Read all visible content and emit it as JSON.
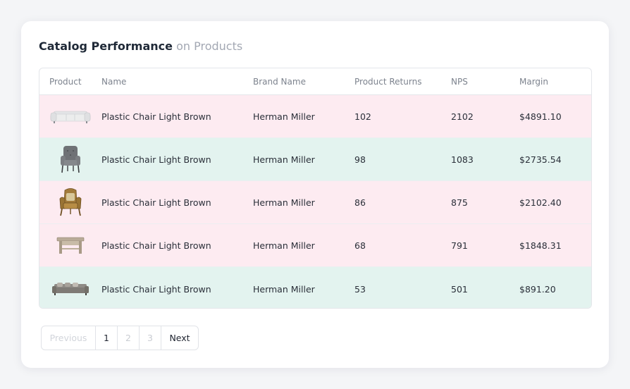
{
  "header": {
    "title": "Catalog Performance",
    "subtitle": "on Products"
  },
  "table": {
    "columns": [
      "Product",
      "Name",
      "Brand Name",
      "Product Returns",
      "NPS",
      "Margin"
    ],
    "rows": [
      {
        "icon": "white-sofa-icon",
        "name": "Plastic Chair Light Brown",
        "brand": "Herman Miller",
        "returns": "102",
        "nps": "2102",
        "margin": "$4891.10",
        "bg": "#fdebf1"
      },
      {
        "icon": "grey-armchair-icon",
        "name": "Plastic Chair Light Brown",
        "brand": "Herman Miller",
        "returns": "98",
        "nps": "1083",
        "margin": "$2735.54",
        "bg": "#e3f3ef"
      },
      {
        "icon": "antique-armchair-icon",
        "name": "Plastic Chair Light Brown",
        "brand": "Herman Miller",
        "returns": "86",
        "nps": "875",
        "margin": "$2102.40",
        "bg": "#fdebf1"
      },
      {
        "icon": "wooden-table-icon",
        "name": "Plastic Chair Light Brown",
        "brand": "Herman Miller",
        "returns": "68",
        "nps": "791",
        "margin": "$1848.31",
        "bg": "#fdebf1"
      },
      {
        "icon": "grey-sofa-icon",
        "name": "Plastic Chair Light Brown",
        "brand": "Herman Miller",
        "returns": "53",
        "nps": "501",
        "margin": "$891.20",
        "bg": "#e3f3ef"
      }
    ]
  },
  "pagination": {
    "previous": "Previous",
    "pages": [
      "1",
      "2",
      "3"
    ],
    "active_page": "1",
    "next": "Next"
  }
}
